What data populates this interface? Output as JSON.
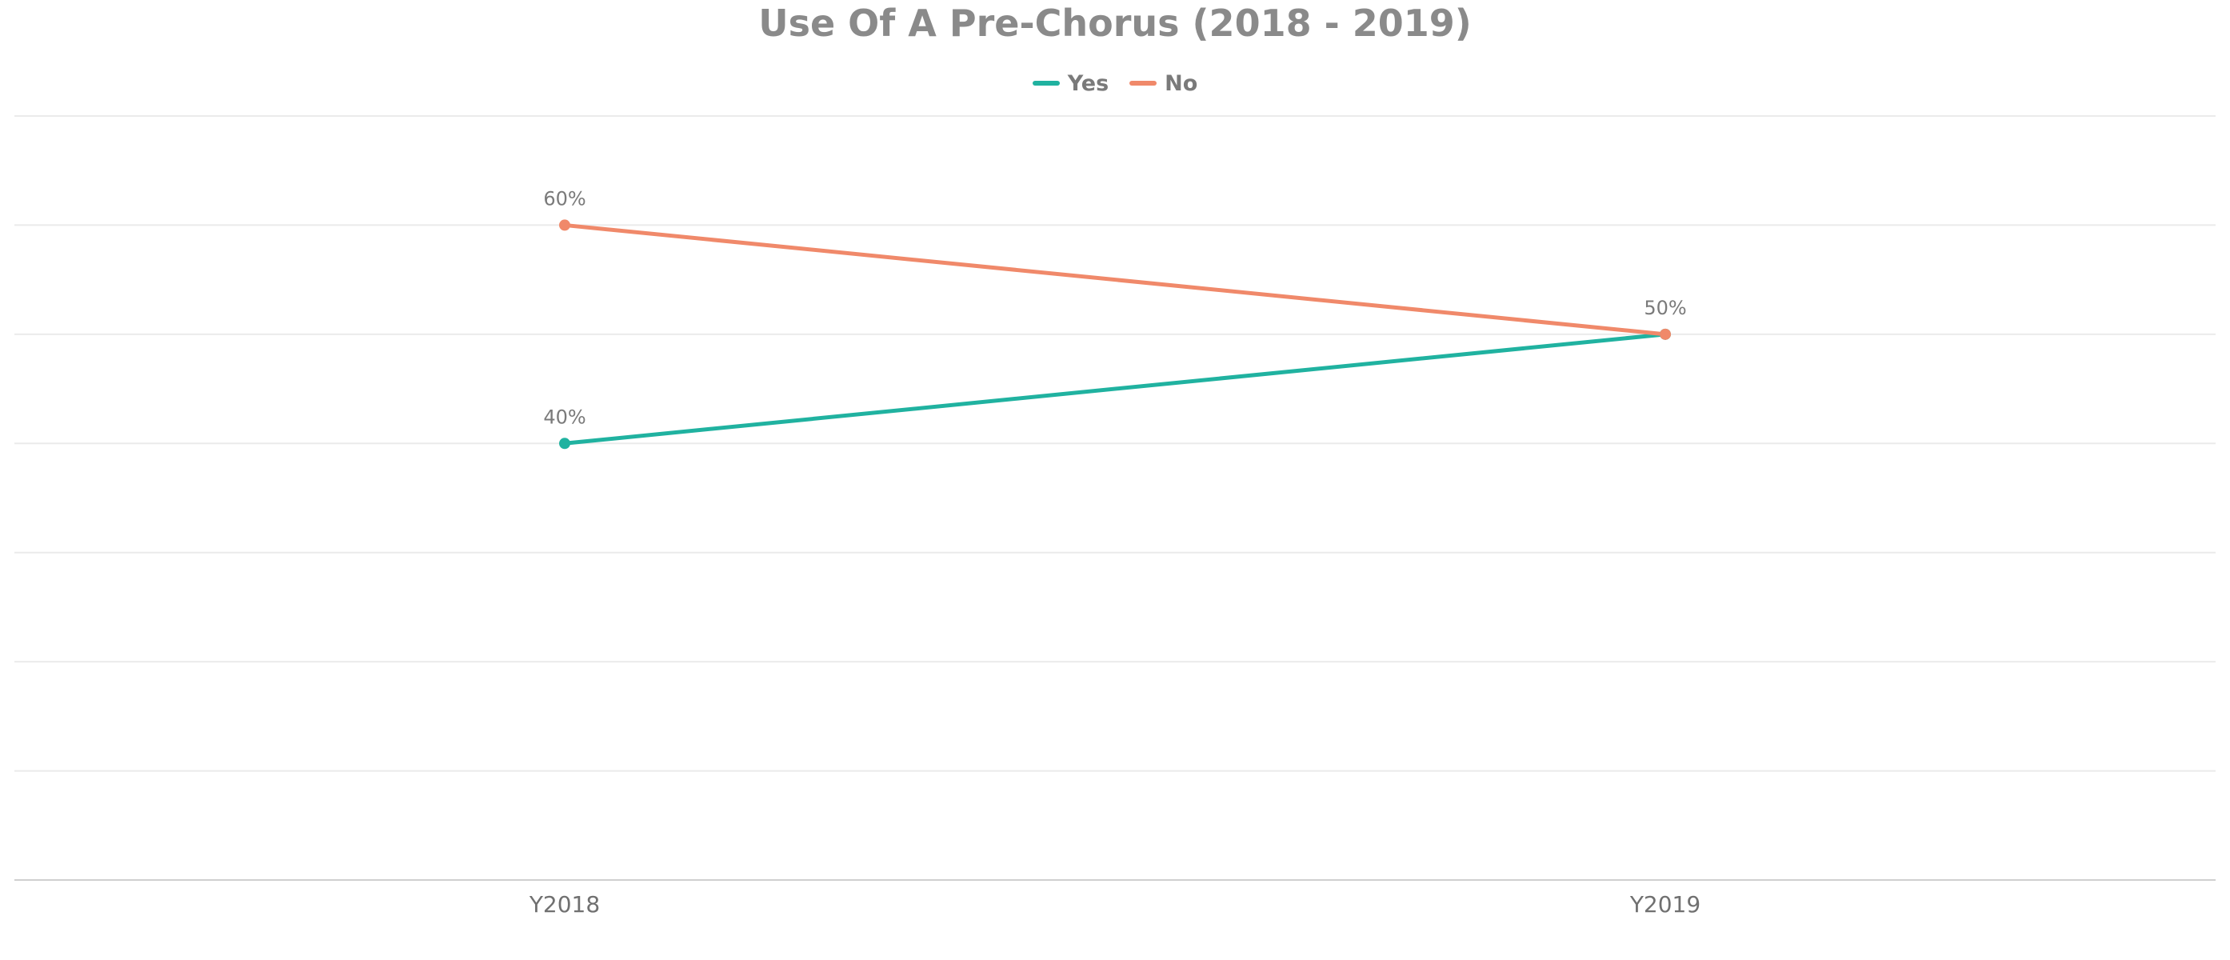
{
  "chart_data": {
    "type": "line",
    "title": "Use Of A Pre-Chorus (2018 - 2019)",
    "categories": [
      "Y2018",
      "Y2019"
    ],
    "series": [
      {
        "name": "Yes",
        "values": [
          40,
          50
        ],
        "color": "#20b2a0"
      },
      {
        "name": "No",
        "values": [
          60,
          50
        ],
        "color": "#f0896a"
      }
    ],
    "data_labels": [
      {
        "text": "60%",
        "category": "Y2018",
        "value": 60
      },
      {
        "text": "40%",
        "category": "Y2018",
        "value": 40
      },
      {
        "text": "50%",
        "category": "Y2019",
        "value": 50
      }
    ],
    "ylim": [
      0,
      70
    ],
    "xlabel": "",
    "ylabel": "",
    "grid": true,
    "legend_position": "top-center"
  }
}
